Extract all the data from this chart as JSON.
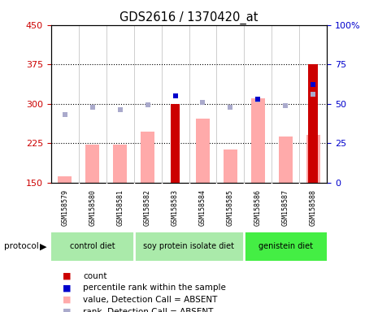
{
  "title": "GDS2616 / 1370420_at",
  "samples": [
    "GSM158579",
    "GSM158580",
    "GSM158581",
    "GSM158582",
    "GSM158583",
    "GSM158584",
    "GSM158585",
    "GSM158586",
    "GSM158587",
    "GSM158588"
  ],
  "group_defs": [
    {
      "name": "control diet",
      "start": 0,
      "end": 2,
      "color": "#aaeaaa"
    },
    {
      "name": "soy protein isolate diet",
      "start": 3,
      "end": 6,
      "color": "#aaeaaa"
    },
    {
      "name": "genistein diet",
      "start": 7,
      "end": 9,
      "color": "#44ee44"
    }
  ],
  "ylim_left": [
    150,
    450
  ],
  "ylim_right": [
    0,
    100
  ],
  "yticks_left": [
    150,
    225,
    300,
    375,
    450
  ],
  "yticks_right": [
    0,
    25,
    50,
    75,
    100
  ],
  "count_values": [
    null,
    null,
    null,
    null,
    300,
    null,
    null,
    null,
    null,
    375
  ],
  "value_absent": [
    162,
    222,
    222,
    247,
    null,
    272,
    213,
    310,
    238,
    240
  ],
  "rank_absent": [
    280,
    293,
    288,
    298,
    null,
    302,
    293,
    308,
    297,
    318
  ],
  "pct_rank_left": [
    null,
    null,
    null,
    null,
    55,
    null,
    null,
    53,
    null,
    62
  ],
  "count_color": "#cc0000",
  "value_absent_color": "#ffaaaa",
  "rank_absent_color": "#aaaacc",
  "pct_rank_color": "#0000cc",
  "baseline": 150,
  "plot_bg_color": "#ffffff",
  "sample_bg_color": "#cccccc",
  "left_label_color": "#cc0000",
  "right_label_color": "#0000cc",
  "grid_color": "black",
  "grid_linestyle": ":",
  "grid_linewidth": 0.8,
  "hgrid_values": [
    225,
    300,
    375
  ],
  "bar_width": 0.5,
  "count_bar_width": 0.35,
  "marker_size": 5
}
